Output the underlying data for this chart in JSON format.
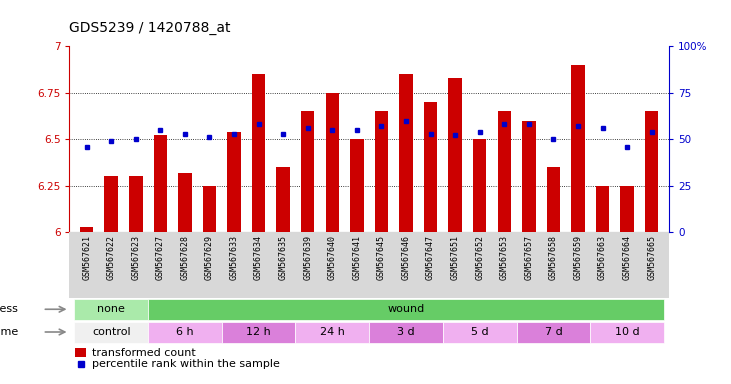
{
  "title": "GDS5239 / 1420788_at",
  "samples": [
    "GSM567621",
    "GSM567622",
    "GSM567623",
    "GSM567627",
    "GSM567628",
    "GSM567629",
    "GSM567633",
    "GSM567634",
    "GSM567635",
    "GSM567639",
    "GSM567640",
    "GSM567641",
    "GSM567645",
    "GSM567646",
    "GSM567647",
    "GSM567651",
    "GSM567652",
    "GSM567653",
    "GSM567657",
    "GSM567658",
    "GSM567659",
    "GSM567663",
    "GSM567664",
    "GSM567665"
  ],
  "bar_values": [
    6.03,
    6.3,
    6.3,
    6.52,
    6.32,
    6.25,
    6.54,
    6.85,
    6.35,
    6.65,
    6.75,
    6.5,
    6.65,
    6.85,
    6.7,
    6.83,
    6.5,
    6.65,
    6.6,
    6.35,
    6.9,
    6.25,
    6.25,
    6.65
  ],
  "percentile_values": [
    6.46,
    6.49,
    6.5,
    6.55,
    6.53,
    6.51,
    6.53,
    6.58,
    6.53,
    6.56,
    6.55,
    6.55,
    6.57,
    6.6,
    6.53,
    6.52,
    6.54,
    6.58,
    6.58,
    6.5,
    6.57,
    6.56,
    6.46,
    6.54
  ],
  "bar_bottom": 6.0,
  "ylim": [
    6.0,
    7.0
  ],
  "yticks": [
    6.0,
    6.25,
    6.5,
    6.75,
    7.0
  ],
  "yticklabels_left": [
    "6",
    "6.25",
    "6.5",
    "6.75",
    "7"
  ],
  "bar_color": "#cc0000",
  "percentile_color": "#0000cc",
  "bg_color": "#ffffff",
  "label_bg_color": "#d8d8d8",
  "stress_groups": [
    {
      "label": "none",
      "start": 0,
      "end": 3,
      "color": "#aaeaaa"
    },
    {
      "label": "wound",
      "start": 3,
      "end": 24,
      "color": "#66cc66"
    }
  ],
  "time_groups": [
    {
      "label": "control",
      "start": 0,
      "end": 3,
      "color": "#f0f0f0"
    },
    {
      "label": "6 h",
      "start": 3,
      "end": 6,
      "color": "#f0b0f0"
    },
    {
      "label": "12 h",
      "start": 6,
      "end": 9,
      "color": "#da80da"
    },
    {
      "label": "24 h",
      "start": 9,
      "end": 12,
      "color": "#f0b0f0"
    },
    {
      "label": "3 d",
      "start": 12,
      "end": 15,
      "color": "#da80da"
    },
    {
      "label": "5 d",
      "start": 15,
      "end": 18,
      "color": "#f0b0f0"
    },
    {
      "label": "7 d",
      "start": 18,
      "end": 21,
      "color": "#da80da"
    },
    {
      "label": "10 d",
      "start": 21,
      "end": 24,
      "color": "#f0b0f0"
    }
  ],
  "title_fontsize": 10,
  "tick_fontsize": 7.5,
  "sample_fontsize": 6,
  "annot_fontsize": 8
}
